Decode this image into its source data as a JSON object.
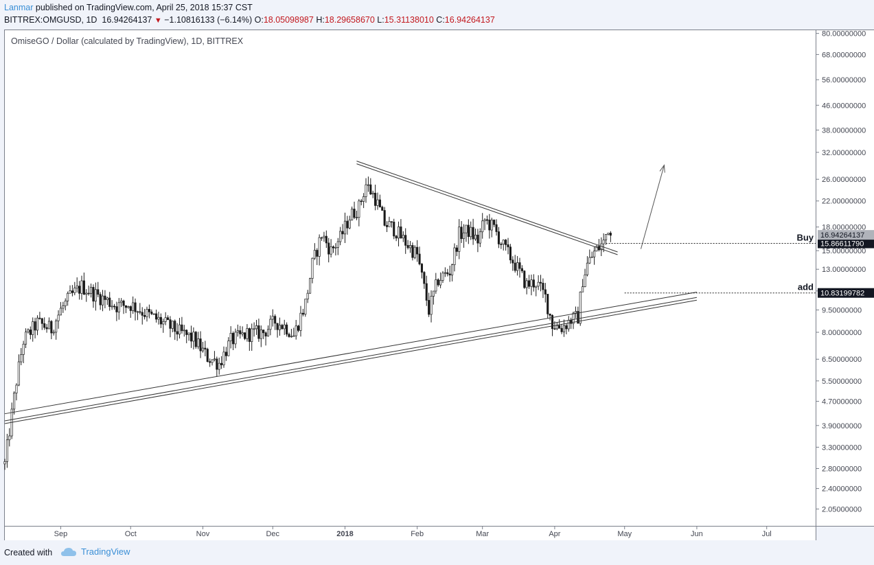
{
  "header": {
    "author": "Lanmar",
    "published_text": "published on TradingView.com, April 25, 2018 15:37 CST",
    "symbol": "BITTREX:OMGUSD, 1D",
    "last": "16.94264137",
    "change": "−1.10816133 (−6.14%)",
    "o_label": "O:",
    "o_value": "18.05098987",
    "h_label": "H:",
    "h_value": "18.29658670",
    "l_label": "L:",
    "l_value": "15.31138010",
    "c_label": "C:",
    "c_value": "16.94264137"
  },
  "footer": {
    "created_with": "Created with",
    "brand": "TradingView"
  },
  "colors": {
    "brand": "#3a8fd6",
    "down": "#c2181e",
    "candles": "#1a1a1a",
    "background": "#ffffff"
  },
  "chart_data": {
    "type": "candlestick",
    "title": "OmiseGO / Dollar (calculated by TradingView), 1D, BITTREX",
    "scale": "log",
    "ylim": [
      1.8,
      82
    ],
    "xlim": [
      "2017-08-08",
      "2018-07-22"
    ],
    "y_ticks": [
      80,
      68,
      56,
      46,
      38,
      32,
      26,
      22,
      18,
      15,
      13,
      11,
      9.5,
      8,
      6.5,
      5.5,
      4.7,
      3.9,
      3.3,
      2.8,
      2.4,
      2.05
    ],
    "y_tick_labels": [
      "80.00000000",
      "68.00000000",
      "56.00000000",
      "46.00000000",
      "38.00000000",
      "32.00000000",
      "26.00000000",
      "22.00000000",
      "18.00000000",
      "15.00000000",
      "13.00000000",
      "11.00000000",
      "9.50000000",
      "8.00000000",
      "6.50000000",
      "5.50000000",
      "4.70000000",
      "3.90000000",
      "3.30000000",
      "2.80000000",
      "2.40000000",
      "2.05000000"
    ],
    "x_ticks": [
      {
        "date": "2017-09-01",
        "label": "Sep",
        "bold": false
      },
      {
        "date": "2017-10-01",
        "label": "Oct",
        "bold": false
      },
      {
        "date": "2017-11-01",
        "label": "Nov",
        "bold": false
      },
      {
        "date": "2017-12-01",
        "label": "Dec",
        "bold": false
      },
      {
        "date": "2018-01-01",
        "label": "2018",
        "bold": true
      },
      {
        "date": "2018-02-01",
        "label": "Feb",
        "bold": false
      },
      {
        "date": "2018-03-01",
        "label": "Mar",
        "bold": false
      },
      {
        "date": "2018-04-01",
        "label": "Apr",
        "bold": false
      },
      {
        "date": "2018-05-01",
        "label": "May",
        "bold": false
      },
      {
        "date": "2018-06-01",
        "label": "Jun",
        "bold": false
      },
      {
        "date": "2018-07-01",
        "label": "Jul",
        "bold": false
      }
    ],
    "price_path": [
      [
        "2017-08-08",
        2.9
      ],
      [
        "2017-08-13",
        5.5
      ],
      [
        "2017-08-16",
        7.5
      ],
      [
        "2017-08-22",
        8.6
      ],
      [
        "2017-08-28",
        8.2
      ],
      [
        "2017-09-01",
        9.5
      ],
      [
        "2017-09-05",
        10.5
      ],
      [
        "2017-09-10",
        11.4
      ],
      [
        "2017-09-15",
        10.8
      ],
      [
        "2017-09-20",
        10.3
      ],
      [
        "2017-09-25",
        9.8
      ],
      [
        "2017-10-01",
        9.9
      ],
      [
        "2017-10-08",
        9.2
      ],
      [
        "2017-10-15",
        8.6
      ],
      [
        "2017-10-22",
        8.0
      ],
      [
        "2017-10-28",
        7.6
      ],
      [
        "2017-11-03",
        6.6
      ],
      [
        "2017-11-08",
        6.3
      ],
      [
        "2017-11-13",
        7.5
      ],
      [
        "2017-11-20",
        7.9
      ],
      [
        "2017-11-27",
        8.0
      ],
      [
        "2017-12-02",
        8.7
      ],
      [
        "2017-12-07",
        8.3
      ],
      [
        "2017-12-10",
        7.8
      ],
      [
        "2017-12-15",
        10.0
      ],
      [
        "2017-12-18",
        13.5
      ],
      [
        "2017-12-22",
        17.0
      ],
      [
        "2017-12-26",
        15.0
      ],
      [
        "2017-12-30",
        16.5
      ],
      [
        "2018-01-03",
        19.5
      ],
      [
        "2018-01-07",
        21.0
      ],
      [
        "2018-01-10",
        25.0
      ],
      [
        "2018-01-14",
        22.5
      ],
      [
        "2018-01-18",
        18.5
      ],
      [
        "2018-01-22",
        17.8
      ],
      [
        "2018-01-27",
        16.0
      ],
      [
        "2018-02-01",
        14.5
      ],
      [
        "2018-02-06",
        9.5
      ],
      [
        "2018-02-10",
        12.0
      ],
      [
        "2018-02-15",
        12.8
      ],
      [
        "2018-02-19",
        17.0
      ],
      [
        "2018-02-23",
        17.5
      ],
      [
        "2018-02-27",
        16.2
      ],
      [
        "2018-03-02",
        19.0
      ],
      [
        "2018-03-06",
        17.8
      ],
      [
        "2018-03-10",
        15.5
      ],
      [
        "2018-03-15",
        13.5
      ],
      [
        "2018-03-20",
        11.5
      ],
      [
        "2018-03-24",
        11.8
      ],
      [
        "2018-03-28",
        10.5
      ],
      [
        "2018-03-31",
        8.5
      ],
      [
        "2018-04-04",
        8.3
      ],
      [
        "2018-04-08",
        8.8
      ],
      [
        "2018-04-11",
        9.0
      ],
      [
        "2018-04-13",
        12.0
      ],
      [
        "2018-04-15",
        13.5
      ],
      [
        "2018-04-18",
        14.8
      ],
      [
        "2018-04-22",
        16.0
      ],
      [
        "2018-04-24",
        18.0
      ],
      [
        "2018-04-25",
        16.94
      ]
    ],
    "trendlines": [
      {
        "name": "descending-resistance",
        "from": [
          "2018-01-06",
          29.6
        ],
        "to": [
          "2018-04-28",
          14.7
        ],
        "double": true
      },
      {
        "name": "ascending-support-upper",
        "from": [
          "2017-08-08",
          4.27
        ],
        "to": [
          "2018-06-01",
          10.9
        ],
        "double": false
      },
      {
        "name": "ascending-support-lower",
        "from": [
          "2017-08-08",
          4.0
        ],
        "to": [
          "2018-06-01",
          10.35
        ],
        "double": true
      }
    ],
    "projection_arrow": {
      "from": [
        "2018-05-08",
        15.2
      ],
      "to": [
        "2018-05-18",
        29.0
      ]
    },
    "levels": [
      {
        "label": "Buy",
        "value": 15.8661179,
        "value_label": "15.86611790",
        "from": "2018-04-23"
      },
      {
        "label": "add",
        "value": 10.83199782,
        "value_label": "10.83199782",
        "from": "2018-05-01"
      }
    ],
    "last_price": {
      "value": 16.94264137,
      "value_label": "16.94264137"
    }
  }
}
